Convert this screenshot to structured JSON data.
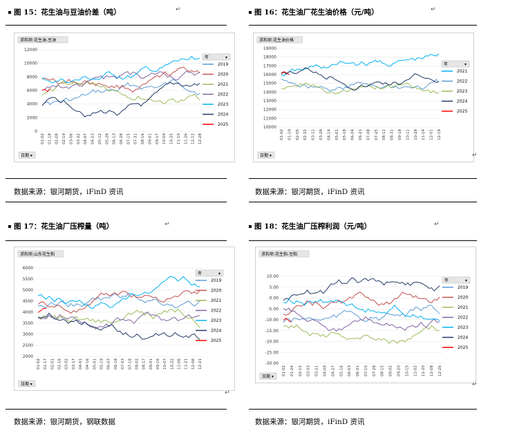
{
  "figures": [
    {
      "title": "图 15：花生油与豆油价差（吨）",
      "field_label": "求和项:花生油-豆油",
      "legend_header": "年",
      "years": [
        "2019",
        "2020",
        "2021",
        "2022",
        "2023",
        "2024",
        "2025"
      ],
      "colors": [
        "#5b9bd5",
        "#c0504d",
        "#9bbb59",
        "#8064a2",
        "#00b0f0",
        "#1f3864",
        "#ff0000"
      ],
      "yticks": [
        "12000",
        "10000",
        "8000",
        "6000",
        "4000",
        "2000",
        "0"
      ],
      "xticks": [
        "01-02",
        "01-18",
        "02-08",
        "02-19",
        "03-06",
        "03-22",
        "04-07",
        "04-23",
        "05-12",
        "05-28",
        "06-13",
        "06-28",
        "07-15",
        "07-31",
        "08-16",
        "09-01",
        "09-17",
        "10-09",
        "10-25",
        "11-10",
        "11-26",
        "12-12",
        "12-28"
      ],
      "date_button": "日期",
      "source": "数据来源：银河期货，iFinD 资讯"
    },
    {
      "title": "图 16：花生油厂花生油价格（元/吨）",
      "field_label": "求和项:花生油价格",
      "legend_header": "年",
      "years": [
        "2021",
        "2022",
        "2023",
        "2024",
        "2025"
      ],
      "colors": [
        "#00b0f0",
        "#5b9bd5",
        "#9bbb59",
        "#1f3864",
        "#ff0000"
      ],
      "yticks": [
        "19000",
        "18000",
        "17000",
        "16000",
        "15000",
        "14000",
        "13000",
        "12000",
        "11000",
        "10000"
      ],
      "xticks": [
        "01-02",
        "01-19",
        "02-05",
        "02-22",
        "03-11",
        "03-28",
        "04-14",
        "05-01",
        "05-18",
        "06-04",
        "06-21",
        "07-08",
        "07-25",
        "08-11",
        "08-31",
        "09-18",
        "10-11",
        "10-28",
        "11-14",
        "12-01",
        "12-18"
      ],
      "date_button": "日期",
      "source": "数据来源：银河期货，iFinD 资讯"
    },
    {
      "title": "图 17：花生油厂压榨量（吨）",
      "field_label": "求和项:山东花生粕",
      "legend_header": "年",
      "years": [
        "2019",
        "2020",
        "2021",
        "2022",
        "2023",
        "2024",
        "2025"
      ],
      "colors": [
        "#5b9bd5",
        "#c0504d",
        "#9bbb59",
        "#8064a2",
        "#00b0f0",
        "#1f3864",
        "#ff0000"
      ],
      "yticks": [
        "6000",
        "5500",
        "5000",
        "4500",
        "4000",
        "3500",
        "3000",
        "2500",
        "2000"
      ],
      "xticks": [
        "01-02",
        "01-17",
        "02-01",
        "02-16",
        "03-02",
        "03-17",
        "04-01",
        "04-16",
        "05-01",
        "05-19",
        "06-03",
        "06-18",
        "07-03",
        "07-18",
        "08-02",
        "08-17",
        "09-01",
        "09-16",
        "10-07",
        "10-22",
        "11-06",
        "11-21",
        "12-06",
        "12-21"
      ],
      "date_button": "日期",
      "source": "数据来源：银河期货，钢联数据"
    },
    {
      "title": "图 18：花生油厂压榨利润（元/吨）",
      "field_label": "求和项:花生粕-豆粕",
      "legend_header": "年",
      "years": [
        "2019",
        "2020",
        "2021",
        "2022",
        "2023",
        "2024",
        "2025"
      ],
      "colors": [
        "#5b9bd5",
        "#c0504d",
        "#9bbb59",
        "#8064a2",
        "#00b0f0",
        "#1f3864",
        "#ff0000"
      ],
      "yticks": [
        "10.00",
        "5.00",
        "0.00",
        "-5.00",
        "-10.00",
        "-15.00",
        "-20.00",
        "-25.00",
        "-30.00"
      ],
      "xticks": [
        "01-02",
        "01-24",
        "02-12",
        "03-03",
        "03-21",
        "04-09",
        "04-27",
        "05-16",
        "06-03",
        "06-21",
        "07-10",
        "07-28",
        "08-15",
        "09-02",
        "09-20",
        "10-15",
        "11-02",
        "11-20",
        "12-08",
        "12-26"
      ],
      "date_button": "日期",
      "source": "数据来源：银河期货，iFinD 资讯"
    }
  ]
}
